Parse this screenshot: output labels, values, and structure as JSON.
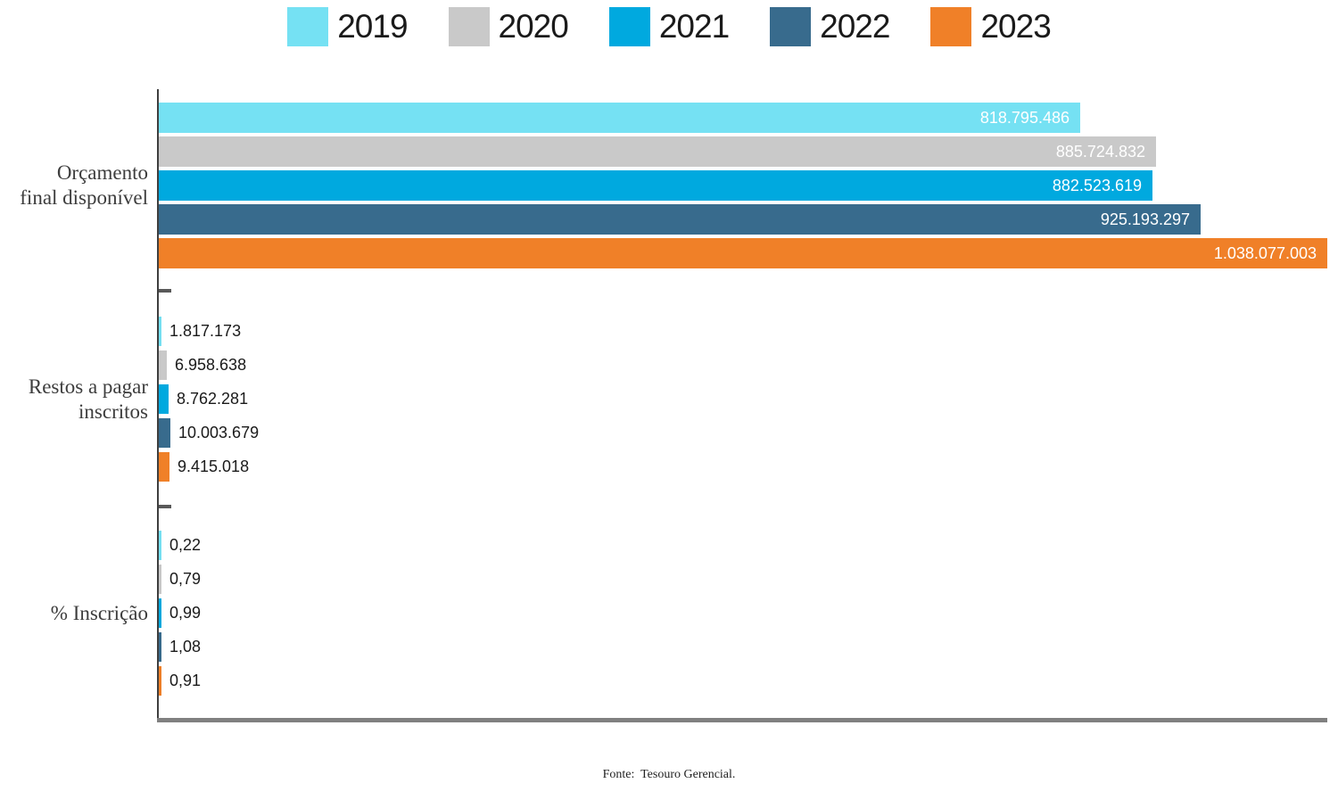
{
  "legend": {
    "items": [
      {
        "label": "2019",
        "color": "#75E1F3"
      },
      {
        "label": "2020",
        "color": "#C9C9C9"
      },
      {
        "label": "2021",
        "color": "#00A9DF"
      },
      {
        "label": "2022",
        "color": "#386B8D"
      },
      {
        "label": "2023",
        "color": "#F08028"
      }
    ]
  },
  "chart_data": {
    "type": "bar",
    "orientation": "horizontal",
    "title": "",
    "xlabel": "",
    "ylabel": "",
    "xlim": [
      0,
      1038077003
    ],
    "grid": false,
    "legend_position": "top-center",
    "categories": [
      "Orçamento final disponível",
      "Restos a pagar inscritos",
      "% Inscrição"
    ],
    "category_label_lines": [
      [
        "Orçamento",
        "final disponível"
      ],
      [
        "Restos a pagar",
        "inscritos"
      ],
      [
        "% Inscrição"
      ]
    ],
    "series": [
      {
        "name": "2019",
        "color": "#75E1F3",
        "values": [
          818795486,
          1817173,
          0.22
        ]
      },
      {
        "name": "2020",
        "color": "#C9C9C9",
        "values": [
          885724832,
          6958638,
          0.79
        ]
      },
      {
        "name": "2021",
        "color": "#00A9DF",
        "values": [
          882523619,
          8762281,
          0.99
        ]
      },
      {
        "name": "2022",
        "color": "#386B8D",
        "values": [
          925193297,
          10003679,
          1.08
        ]
      },
      {
        "name": "2023",
        "color": "#F08028",
        "values": [
          1038077003,
          9415018,
          0.91
        ]
      }
    ],
    "value_labels": [
      [
        "818.795.486",
        "1.817.173",
        "0,22"
      ],
      [
        "885.724.832",
        "6.958.638",
        "0,79"
      ],
      [
        "882.523.619",
        "8.762.281",
        "0,99"
      ],
      [
        "925.193.297",
        "10.003.679",
        "1,08"
      ],
      [
        "1.038.077.003",
        "9.415.018",
        "0,91"
      ]
    ],
    "labels_inside_bar_per_group": [
      true,
      false,
      false
    ]
  },
  "footer": {
    "text": "Fonte:  Tesouro Gerencial."
  }
}
